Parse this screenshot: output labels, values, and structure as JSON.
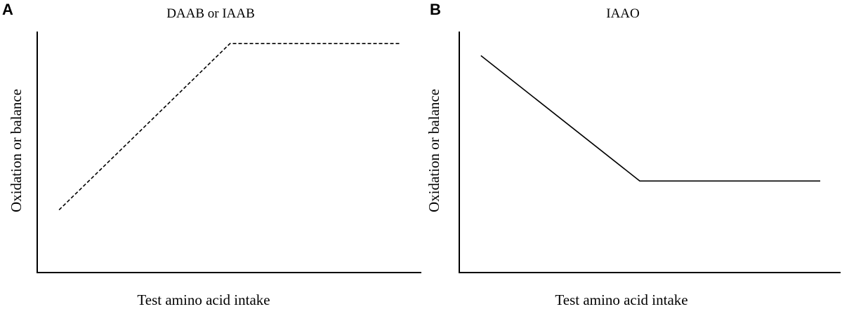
{
  "chart_data": [
    {
      "type": "line",
      "panel": "A",
      "title": "DAAB or IAAB",
      "xlabel": "Test amino acid intake",
      "ylabel": "Oxidation or balance",
      "xlim": [
        0,
        100
      ],
      "ylim": [
        0,
        100
      ],
      "grid": false,
      "series": [
        {
          "line_style": "dashed",
          "x": [
            6,
            53,
            100
          ],
          "y": [
            26,
            95,
            95
          ]
        }
      ]
    },
    {
      "type": "line",
      "panel": "B",
      "title": "IAAO",
      "xlabel": "Test amino acid intake",
      "ylabel": "Oxidation or balance",
      "xlim": [
        0,
        100
      ],
      "ylim": [
        0,
        100
      ],
      "grid": false,
      "series": [
        {
          "line_style": "solid",
          "x": [
            6,
            50,
            100
          ],
          "y": [
            90,
            38,
            38
          ]
        }
      ]
    }
  ]
}
